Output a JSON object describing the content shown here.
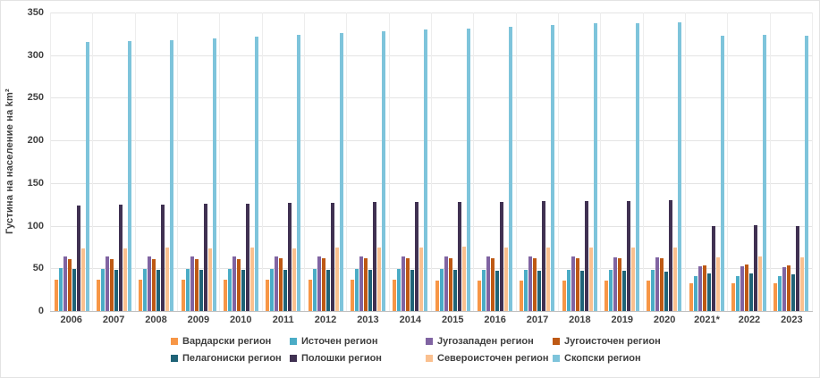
{
  "chart_data": {
    "type": "bar",
    "title": "",
    "ylabel": "Густина на население на km²",
    "xlabel": "",
    "ylim": [
      0,
      350
    ],
    "yticks": [
      0,
      50,
      100,
      150,
      200,
      250,
      300,
      350
    ],
    "grid": true,
    "legend_position": "bottom",
    "categories": [
      "2006",
      "2007",
      "2008",
      "2009",
      "2010",
      "2011",
      "2012",
      "2013",
      "2014",
      "2015",
      "2016",
      "2017",
      "2018",
      "2019",
      "2020",
      "2021*",
      "2022",
      "2023"
    ],
    "series": [
      {
        "name": "Вардарски регион",
        "color": "#F79646",
        "values": [
          37,
          37,
          37,
          37,
          37,
          37,
          37,
          37,
          37,
          36,
          36,
          36,
          36,
          36,
          36,
          33,
          33,
          32
        ]
      },
      {
        "name": "Источен регион",
        "color": "#4BACC6",
        "values": [
          50,
          49,
          49,
          49,
          49,
          49,
          49,
          49,
          49,
          49,
          48,
          48,
          48,
          48,
          48,
          41,
          41,
          41
        ]
      },
      {
        "name": "Југозападен регион",
        "color": "#8064A2",
        "values": [
          64,
          64,
          64,
          64,
          64,
          64,
          64,
          64,
          64,
          64,
          64,
          64,
          64,
          63,
          63,
          52,
          52,
          51
        ]
      },
      {
        "name": "Југоисточен регион",
        "color": "#BE5914",
        "values": [
          61,
          61,
          61,
          61,
          61,
          62,
          62,
          62,
          62,
          62,
          62,
          62,
          62,
          62,
          62,
          53,
          54,
          53
        ]
      },
      {
        "name": "Пелагониски регион",
        "color": "#1F6377",
        "values": [
          49,
          48,
          48,
          48,
          48,
          48,
          48,
          48,
          48,
          48,
          47,
          47,
          47,
          47,
          46,
          44,
          44,
          43
        ]
      },
      {
        "name": "Полошки регион",
        "color": "#403152",
        "values": [
          124,
          125,
          125,
          126,
          126,
          127,
          127,
          128,
          128,
          128,
          128,
          129,
          129,
          129,
          130,
          100,
          101,
          100
        ]
      },
      {
        "name": "Североисточен регион",
        "color": "#FAC08F",
        "values": [
          73,
          73,
          74,
          73,
          74,
          73,
          74,
          74,
          74,
          75,
          74,
          74,
          74,
          74,
          74,
          63,
          64,
          63
        ]
      },
      {
        "name": "Скопски регион",
        "color": "#7EC4DB",
        "values": [
          315,
          317,
          318,
          320,
          322,
          324,
          326,
          328,
          330,
          331,
          333,
          335,
          337,
          337,
          338,
          323,
          324,
          323
        ]
      }
    ]
  }
}
